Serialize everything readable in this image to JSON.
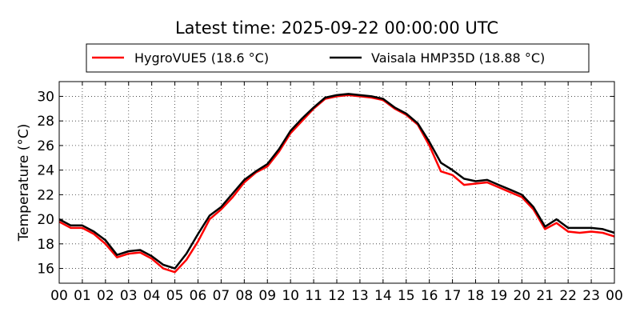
{
  "chart_data": {
    "type": "line",
    "title": "Latest time: 2025-09-22 00:00:00 UTC",
    "xlabel": "",
    "ylabel": "Temperature (°C)",
    "xlim": [
      0,
      24
    ],
    "ylim": [
      14.8,
      31.2
    ],
    "x_ticks": [
      "00",
      "01",
      "02",
      "03",
      "04",
      "05",
      "06",
      "07",
      "08",
      "09",
      "10",
      "11",
      "12",
      "13",
      "14",
      "15",
      "16",
      "17",
      "18",
      "19",
      "20",
      "21",
      "22",
      "23",
      "00"
    ],
    "y_ticks": [
      16,
      18,
      20,
      22,
      24,
      26,
      28,
      30
    ],
    "grid": true,
    "legend_position": "top-center",
    "x": [
      0,
      0.5,
      1,
      1.5,
      2,
      2.5,
      3,
      3.5,
      4,
      4.5,
      5,
      5.5,
      6,
      6.5,
      7,
      7.5,
      8,
      8.5,
      9,
      9.5,
      10,
      10.5,
      11,
      11.5,
      12,
      12.5,
      13,
      13.5,
      14,
      14.5,
      15,
      15.5,
      16,
      16.5,
      17,
      17.5,
      18,
      18.5,
      19,
      19.5,
      20,
      20.5,
      21,
      21.5,
      22,
      22.5,
      23,
      23.5,
      24
    ],
    "series": [
      {
        "name": "HygroVUE5 (18.6 °C)",
        "color": "#ff0000",
        "values": [
          19.8,
          19.3,
          19.3,
          18.8,
          18.0,
          16.9,
          17.2,
          17.3,
          16.8,
          16.0,
          15.7,
          16.7,
          18.2,
          20.0,
          20.8,
          21.8,
          23.0,
          23.8,
          24.3,
          25.5,
          27.0,
          28.0,
          29.0,
          29.8,
          30.0,
          30.1,
          30.0,
          29.9,
          29.7,
          29.0,
          28.5,
          27.7,
          26.0,
          23.9,
          23.6,
          22.8,
          22.9,
          23.0,
          22.6,
          22.2,
          21.8,
          20.8,
          19.2,
          19.7,
          19.0,
          18.9,
          19.0,
          18.9,
          18.6
        ]
      },
      {
        "name": "Vaisala HMP35D (18.88 °C)",
        "color": "#000000",
        "values": [
          20.0,
          19.5,
          19.5,
          19.0,
          18.3,
          17.1,
          17.4,
          17.5,
          17.0,
          16.3,
          16.0,
          17.2,
          18.8,
          20.3,
          21.0,
          22.1,
          23.2,
          23.9,
          24.5,
          25.7,
          27.2,
          28.2,
          29.1,
          29.9,
          30.1,
          30.2,
          30.1,
          30.0,
          29.8,
          29.1,
          28.6,
          27.8,
          26.3,
          24.6,
          24.0,
          23.3,
          23.1,
          23.2,
          22.8,
          22.4,
          22.0,
          21.0,
          19.4,
          20.0,
          19.3,
          19.3,
          19.3,
          19.2,
          18.9
        ]
      }
    ]
  }
}
